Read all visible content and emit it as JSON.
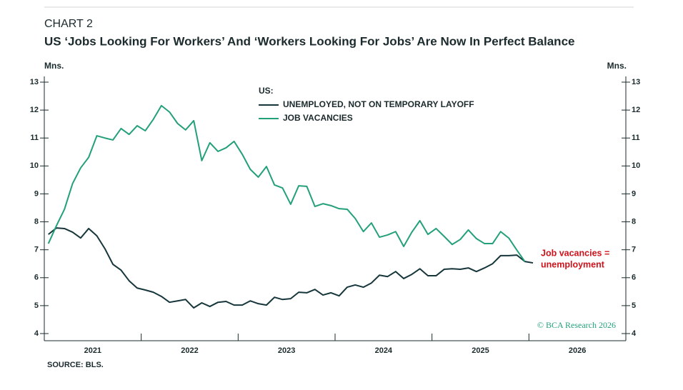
{
  "chart_data": {
    "type": "line",
    "chart_label": "CHART 2",
    "title": "US ‘Jobs Looking For Workers’ And ‘Workers Looking For Jobs’ Are Now In Perfect Balance",
    "y_unit_label": "Mns.",
    "y2_unit_label": "Mns.",
    "legend_title": "US:",
    "annotation": [
      "Job vacancies =",
      "unemployment"
    ],
    "source": "SOURCE: BLS.",
    "watermark": "© BCA Research 2026",
    "x": [
      2021.042,
      2021.125,
      2021.208,
      2021.292,
      2021.375,
      2021.458,
      2021.542,
      2021.625,
      2021.708,
      2021.792,
      2021.875,
      2021.958,
      2022.042,
      2022.125,
      2022.208,
      2022.292,
      2022.375,
      2022.458,
      2022.542,
      2022.625,
      2022.708,
      2022.792,
      2022.875,
      2022.958,
      2023.042,
      2023.125,
      2023.208,
      2023.292,
      2023.375,
      2023.458,
      2023.542,
      2023.625,
      2023.708,
      2023.792,
      2023.875,
      2023.958,
      2024.042,
      2024.125,
      2024.208,
      2024.292,
      2024.375,
      2024.458,
      2024.542,
      2024.625,
      2024.708,
      2024.792,
      2024.875,
      2024.958,
      2025.042,
      2025.125,
      2025.208,
      2025.292,
      2025.375,
      2025.458,
      2025.542,
      2025.625,
      2025.708,
      2025.792,
      2025.875,
      2025.958,
      2026.042
    ],
    "series": [
      {
        "name": "UNEMPLOYED, NOT ON TEMPORARY LAYOFF",
        "color": "#16363b",
        "values": [
          7.55,
          7.78,
          7.76,
          7.63,
          7.42,
          7.76,
          7.5,
          7.04,
          6.48,
          6.27,
          5.89,
          5.63,
          5.56,
          5.48,
          5.33,
          5.12,
          5.17,
          5.22,
          4.92,
          5.1,
          4.97,
          5.12,
          5.15,
          5.02,
          5.02,
          5.17,
          5.07,
          5.02,
          5.3,
          5.22,
          5.25,
          5.48,
          5.46,
          5.58,
          5.38,
          5.46,
          5.35,
          5.66,
          5.74,
          5.66,
          5.81,
          6.09,
          6.04,
          6.22,
          5.97,
          6.12,
          6.32,
          6.07,
          6.07,
          6.3,
          6.32,
          6.3,
          6.35,
          6.22,
          6.35,
          6.5,
          6.79,
          6.79,
          6.81,
          6.58,
          6.53
        ]
      },
      {
        "name": "JOB VACANCIES",
        "color": "#23a07a",
        "values": [
          7.22,
          7.86,
          8.45,
          9.37,
          9.93,
          10.31,
          11.08,
          11.0,
          10.93,
          11.34,
          11.13,
          11.44,
          11.26,
          11.67,
          12.16,
          11.93,
          11.52,
          11.29,
          11.62,
          10.19,
          10.83,
          10.52,
          10.65,
          10.88,
          10.42,
          9.88,
          9.6,
          9.98,
          9.32,
          9.21,
          8.63,
          9.29,
          9.27,
          8.55,
          8.65,
          8.58,
          8.47,
          8.45,
          8.12,
          7.65,
          7.96,
          7.45,
          7.53,
          7.65,
          7.12,
          7.63,
          8.04,
          7.55,
          7.76,
          7.48,
          7.19,
          7.37,
          7.71,
          7.4,
          7.22,
          7.22,
          7.65,
          7.42,
          6.99,
          6.58,
          null
        ]
      }
    ],
    "xlim": [
      2021,
      2027
    ],
    "xticks": [
      2021,
      2022,
      2023,
      2024,
      2025,
      2026
    ],
    "ylim": [
      4,
      13
    ],
    "yticks": [
      4,
      5,
      6,
      7,
      8,
      9,
      10,
      11,
      12,
      13
    ],
    "y2lim": [
      4,
      13
    ],
    "y2ticks": [
      4,
      5,
      6,
      7,
      8,
      9,
      10,
      11,
      12,
      13
    ],
    "annotation_color": "#d0121b"
  }
}
